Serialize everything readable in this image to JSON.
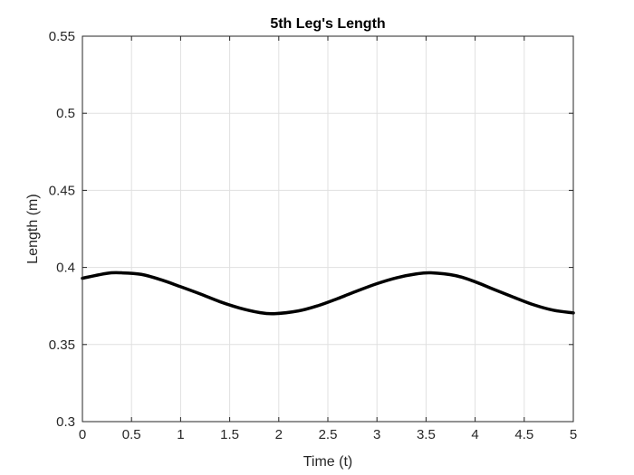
{
  "chart_data": {
    "type": "line",
    "title": "5th Leg's Length",
    "xlabel": "Time (t)",
    "ylabel": "Length (m)",
    "xlim": [
      0,
      5
    ],
    "ylim": [
      0.3,
      0.55
    ],
    "grid": true,
    "xticks": [
      0,
      0.5,
      1,
      1.5,
      2,
      2.5,
      3,
      3.5,
      4,
      4.5,
      5
    ],
    "xtick_labels": [
      "0",
      "0.5",
      "1",
      "1.5",
      "2",
      "2.5",
      "3",
      "3.5",
      "4",
      "4.5",
      "5"
    ],
    "yticks": [
      0.3,
      0.35,
      0.4,
      0.45,
      0.5,
      0.55
    ],
    "ytick_labels": [
      "0.3",
      "0.35",
      "0.4",
      "0.45",
      "0.5",
      "0.55"
    ],
    "series": [
      {
        "color": "#000000",
        "x": [
          0,
          0.25,
          0.4,
          0.6,
          0.8,
          1.0,
          1.2,
          1.4,
          1.6,
          1.8,
          1.95,
          2.2,
          2.4,
          2.6,
          2.8,
          3.0,
          3.2,
          3.4,
          3.55,
          3.8,
          4.0,
          4.2,
          4.4,
          4.6,
          4.8,
          5.0
        ],
        "y": [
          0.393,
          0.3962,
          0.3965,
          0.3955,
          0.392,
          0.3875,
          0.3828,
          0.3778,
          0.3737,
          0.3708,
          0.37,
          0.3718,
          0.3752,
          0.3798,
          0.3848,
          0.3895,
          0.3933,
          0.3958,
          0.3965,
          0.3947,
          0.3907,
          0.3855,
          0.3805,
          0.3757,
          0.3722,
          0.3705
        ]
      }
    ]
  }
}
